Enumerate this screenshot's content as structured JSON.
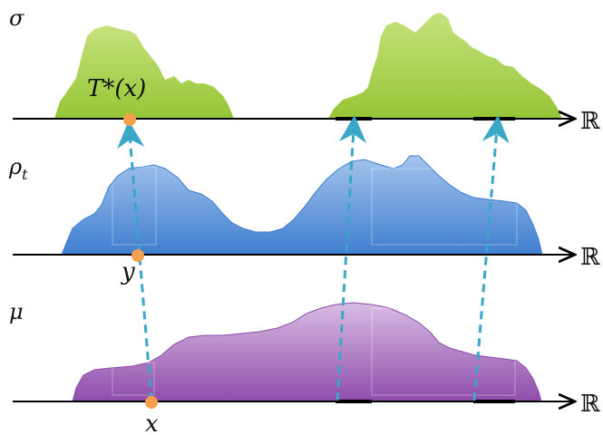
{
  "rows": [
    {
      "id": "sigma",
      "label": "σ",
      "color_top": "#c6e27c",
      "color_bottom": "#96c536"
    },
    {
      "id": "rho",
      "label": "ρ",
      "sub": "t",
      "color_top": "#a3c4ec",
      "color_bottom": "#3f7ed0"
    },
    {
      "id": "mu",
      "label": "μ",
      "color_top": "#d8bde3",
      "color_bottom": "#8f4cab"
    }
  ],
  "axis_symbol": "ℝ",
  "points": {
    "top": {
      "label": "T*(x)",
      "color": "#f6a04d"
    },
    "middle": {
      "label": "y",
      "color": "#f6a04d"
    },
    "bottom": {
      "label": "x",
      "color": "#f6a04d"
    }
  },
  "arrow_color": "#3aa7c9",
  "axis_color": "#000000"
}
